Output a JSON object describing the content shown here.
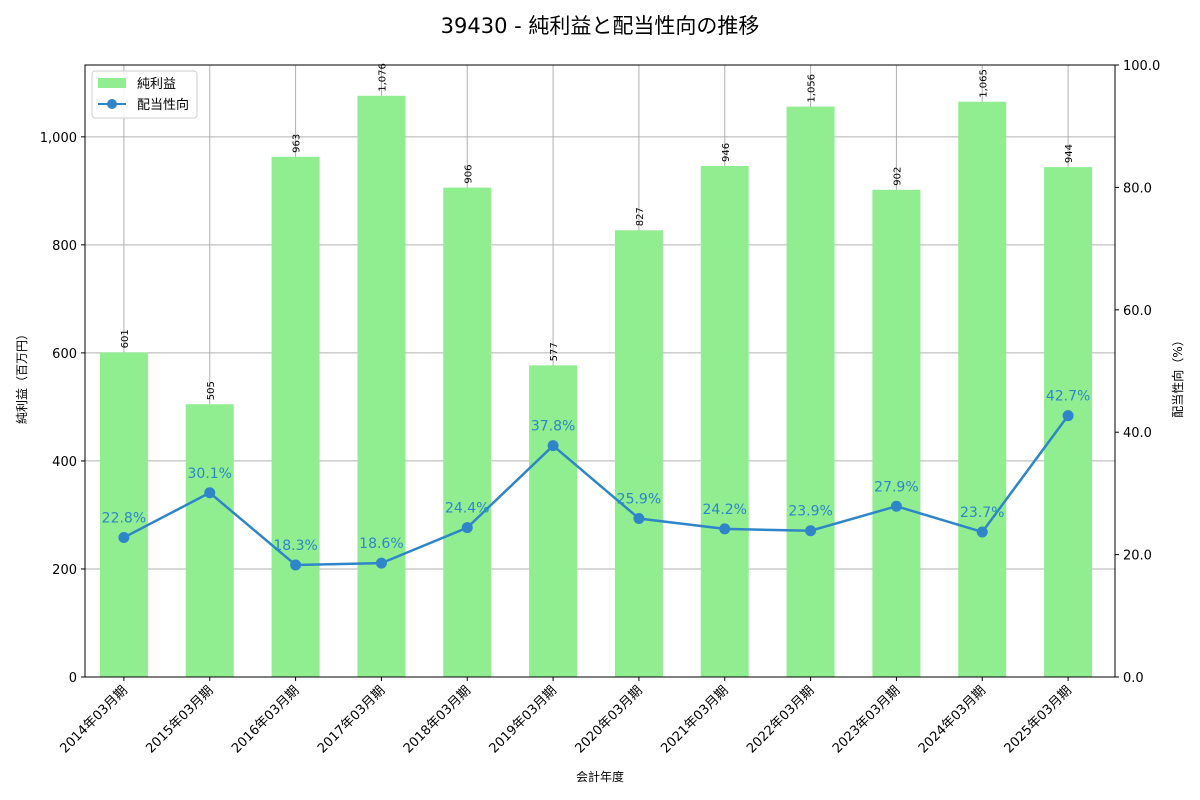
{
  "chart_data": {
    "type": "bar+line",
    "title": "39430 - 純利益と配当性向の推移",
    "xlabel": "会計年度",
    "ylabel_left": "純利益（百万円）",
    "ylabel_right": "配当性向（%）",
    "categories": [
      "2014年03月期",
      "2015年03月期",
      "2016年03月期",
      "2017年03月期",
      "2018年03月期",
      "2019年03月期",
      "2020年03月期",
      "2021年03月期",
      "2022年03月期",
      "2023年03月期",
      "2024年03月期",
      "2025年03月期"
    ],
    "series": [
      {
        "name": "純利益",
        "type": "bar",
        "axis": "left",
        "color": "#90ee90",
        "values": [
          601,
          505,
          963,
          1076,
          906,
          577,
          827,
          946,
          1056,
          902,
          1065,
          944
        ],
        "labels": [
          "601",
          "505",
          "963",
          "1,076",
          "906",
          "577",
          "827",
          "946",
          "1,056",
          "902",
          "1,065",
          "944"
        ]
      },
      {
        "name": "配当性向",
        "type": "line",
        "axis": "right",
        "color": "#2e86c8",
        "values": [
          22.8,
          30.1,
          18.3,
          18.6,
          24.4,
          37.8,
          25.9,
          24.2,
          23.9,
          27.9,
          23.7,
          42.7
        ],
        "labels": [
          "22.8%",
          "30.1%",
          "18.3%",
          "18.6%",
          "24.4%",
          "37.8%",
          "25.9%",
          "24.2%",
          "23.9%",
          "27.9%",
          "23.7%",
          "42.7%"
        ]
      }
    ],
    "ylim_left": [
      0,
      1133
    ],
    "yticks_left": [
      0,
      200,
      400,
      600,
      800,
      1000
    ],
    "yticks_left_labels": [
      "0",
      "200",
      "400",
      "600",
      "800",
      "1,000"
    ],
    "ylim_right": [
      0,
      100
    ],
    "yticks_right": [
      0,
      20,
      40,
      60,
      80,
      100
    ],
    "yticks_right_labels": [
      "0.0",
      "20.0",
      "40.0",
      "60.0",
      "80.0",
      "100.0"
    ],
    "grid": true,
    "legend_position": "upper left"
  }
}
